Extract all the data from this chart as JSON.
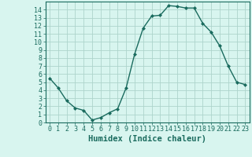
{
  "x": [
    0,
    1,
    2,
    3,
    4,
    5,
    6,
    7,
    8,
    9,
    10,
    11,
    12,
    13,
    14,
    15,
    16,
    17,
    18,
    19,
    20,
    21,
    22,
    23
  ],
  "y": [
    5.5,
    4.3,
    2.7,
    1.8,
    1.5,
    0.3,
    0.6,
    1.2,
    1.7,
    4.3,
    8.5,
    11.7,
    13.2,
    13.3,
    14.5,
    14.4,
    14.2,
    14.2,
    12.3,
    11.2,
    9.5,
    7.0,
    5.0,
    4.7
  ],
  "line_color": "#1a6b5e",
  "marker": "D",
  "marker_size": 2.0,
  "bg_color": "#d8f5ef",
  "grid_color": "#aed4cc",
  "xlabel": "Humidex (Indice chaleur)",
  "xlim": [
    -0.5,
    23.5
  ],
  "ylim": [
    0,
    15
  ],
  "yticks": [
    0,
    1,
    2,
    3,
    4,
    5,
    6,
    7,
    8,
    9,
    10,
    11,
    12,
    13,
    14
  ],
  "xticks": [
    0,
    1,
    2,
    3,
    4,
    5,
    6,
    7,
    8,
    9,
    10,
    11,
    12,
    13,
    14,
    15,
    16,
    17,
    18,
    19,
    20,
    21,
    22,
    23
  ],
  "xlabel_fontsize": 7.5,
  "tick_fontsize": 6,
  "axis_color": "#1a6b5e",
  "tick_color": "#1a6b5e",
  "linewidth": 1.0,
  "spine_linewidth": 0.8
}
